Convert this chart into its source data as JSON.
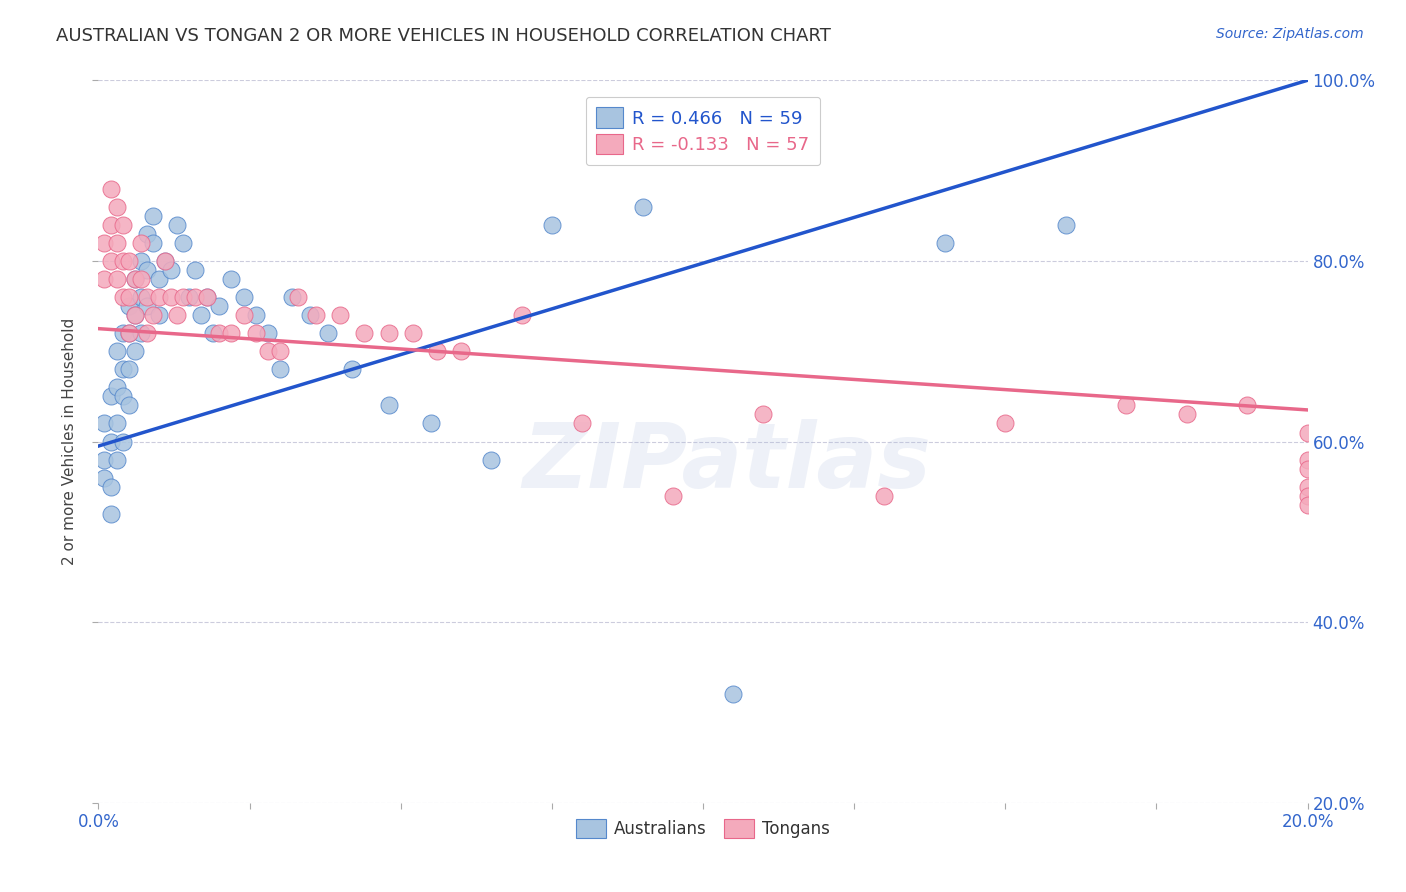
{
  "title": "AUSTRALIAN VS TONGAN 2 OR MORE VEHICLES IN HOUSEHOLD CORRELATION CHART",
  "source": "Source: ZipAtlas.com",
  "ylabel": "2 or more Vehicles in Household",
  "watermark": "ZIPatlas",
  "legend_r1": "R = 0.466   N = 59",
  "legend_r2": "R = -0.133   N = 57",
  "blue_color": "#A8C4E0",
  "pink_color": "#F4AABC",
  "blue_edge_color": "#5588CC",
  "pink_edge_color": "#E8678A",
  "blue_line_color": "#2255CC",
  "pink_line_color": "#E8688A",
  "title_color": "#333333",
  "source_color": "#3366CC",
  "axis_label_color": "#444444",
  "tick_color": "#3366CC",
  "grid_color": "#CCCCDD",
  "x_min": 0.0,
  "x_max": 0.2,
  "y_min": 0.2,
  "y_max": 1.0,
  "blue_points_x": [
    0.001,
    0.001,
    0.001,
    0.002,
    0.002,
    0.002,
    0.002,
    0.003,
    0.003,
    0.003,
    0.003,
    0.004,
    0.004,
    0.004,
    0.004,
    0.005,
    0.005,
    0.005,
    0.005,
    0.006,
    0.006,
    0.006,
    0.007,
    0.007,
    0.007,
    0.008,
    0.008,
    0.008,
    0.009,
    0.009,
    0.01,
    0.01,
    0.011,
    0.012,
    0.013,
    0.014,
    0.015,
    0.016,
    0.017,
    0.018,
    0.019,
    0.02,
    0.022,
    0.024,
    0.026,
    0.028,
    0.03,
    0.032,
    0.035,
    0.038,
    0.042,
    0.048,
    0.055,
    0.065,
    0.075,
    0.09,
    0.105,
    0.14,
    0.16
  ],
  "blue_points_y": [
    0.56,
    0.62,
    0.58,
    0.65,
    0.6,
    0.55,
    0.52,
    0.7,
    0.66,
    0.62,
    0.58,
    0.72,
    0.68,
    0.65,
    0.6,
    0.75,
    0.72,
    0.68,
    0.64,
    0.78,
    0.74,
    0.7,
    0.8,
    0.76,
    0.72,
    0.83,
    0.79,
    0.75,
    0.85,
    0.82,
    0.78,
    0.74,
    0.8,
    0.79,
    0.84,
    0.82,
    0.76,
    0.79,
    0.74,
    0.76,
    0.72,
    0.75,
    0.78,
    0.76,
    0.74,
    0.72,
    0.68,
    0.76,
    0.74,
    0.72,
    0.68,
    0.64,
    0.62,
    0.58,
    0.84,
    0.86,
    0.32,
    0.82,
    0.84
  ],
  "pink_points_x": [
    0.001,
    0.001,
    0.002,
    0.002,
    0.002,
    0.003,
    0.003,
    0.003,
    0.004,
    0.004,
    0.004,
    0.005,
    0.005,
    0.005,
    0.006,
    0.006,
    0.007,
    0.007,
    0.008,
    0.008,
    0.009,
    0.01,
    0.011,
    0.012,
    0.013,
    0.014,
    0.016,
    0.018,
    0.02,
    0.022,
    0.024,
    0.026,
    0.028,
    0.03,
    0.033,
    0.036,
    0.04,
    0.044,
    0.048,
    0.052,
    0.056,
    0.06,
    0.07,
    0.08,
    0.095,
    0.11,
    0.13,
    0.15,
    0.17,
    0.18,
    0.19,
    0.2,
    0.2,
    0.2,
    0.2,
    0.2,
    0.2
  ],
  "pink_points_y": [
    0.82,
    0.78,
    0.88,
    0.84,
    0.8,
    0.86,
    0.82,
    0.78,
    0.84,
    0.8,
    0.76,
    0.8,
    0.76,
    0.72,
    0.78,
    0.74,
    0.82,
    0.78,
    0.76,
    0.72,
    0.74,
    0.76,
    0.8,
    0.76,
    0.74,
    0.76,
    0.76,
    0.76,
    0.72,
    0.72,
    0.74,
    0.72,
    0.7,
    0.7,
    0.76,
    0.74,
    0.74,
    0.72,
    0.72,
    0.72,
    0.7,
    0.7,
    0.74,
    0.62,
    0.54,
    0.63,
    0.54,
    0.62,
    0.64,
    0.63,
    0.64,
    0.61,
    0.58,
    0.55,
    0.57,
    0.54,
    0.53
  ],
  "blue_line_x": [
    0.0,
    0.2
  ],
  "blue_line_y": [
    0.595,
    1.0
  ],
  "pink_line_x": [
    0.0,
    0.2
  ],
  "pink_line_y": [
    0.725,
    0.635
  ]
}
